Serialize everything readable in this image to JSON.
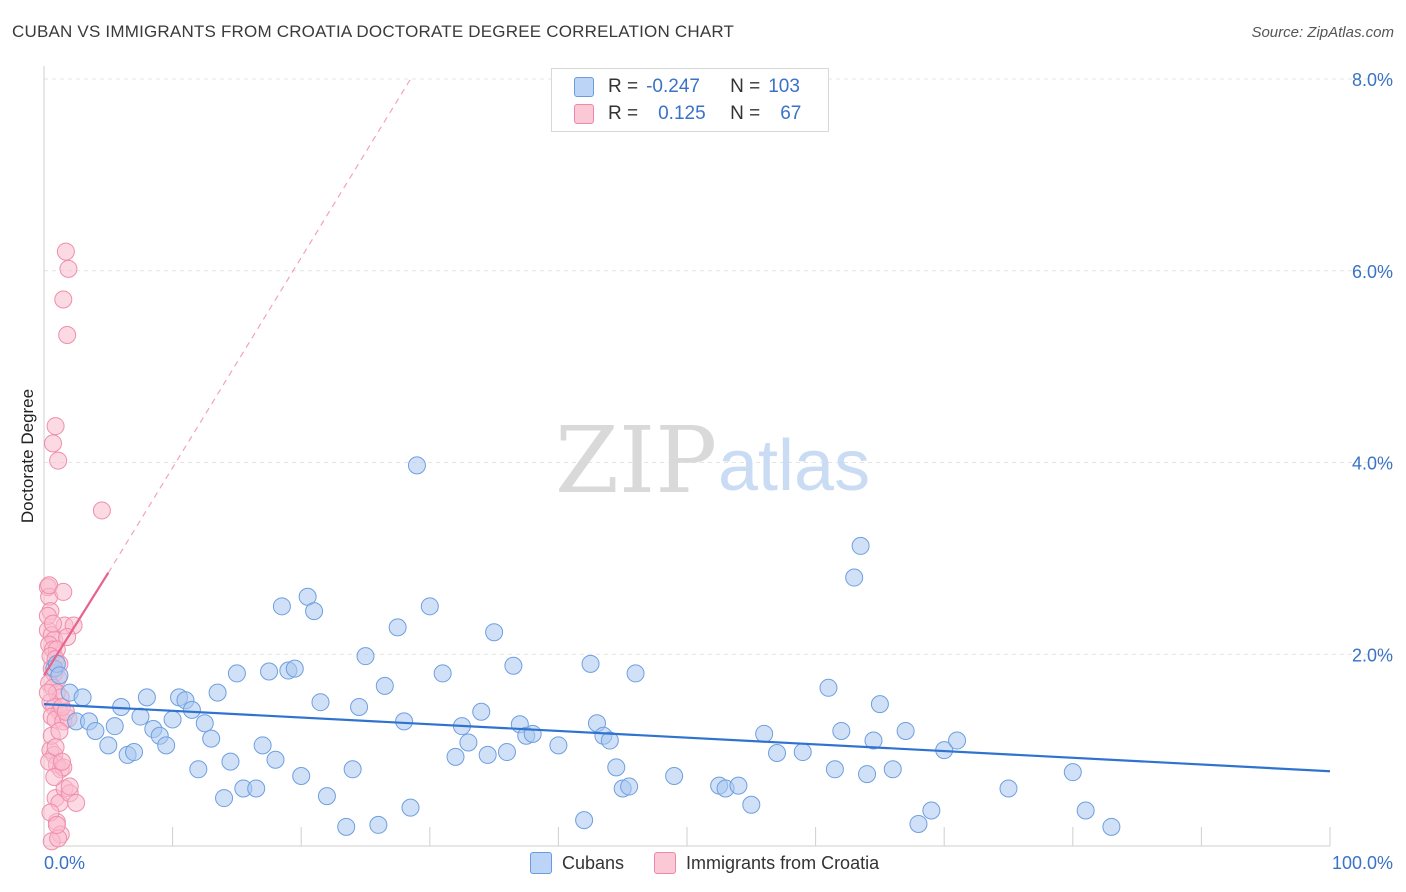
{
  "title": "CUBAN VS IMMIGRANTS FROM CROATIA DOCTORATE DEGREE CORRELATION CHART",
  "source": "Source: ZipAtlas.com",
  "watermark": {
    "zip": "ZIP",
    "atlas": "atlas"
  },
  "legend": {
    "rows": [
      {
        "r_label": "R =",
        "r_value": "-0.247",
        "n_label": "N =",
        "n_value": "103"
      },
      {
        "r_label": "R =",
        "r_value": "0.125",
        "n_label": "N =",
        "n_value": "67"
      }
    ]
  },
  "bottom_legend": {
    "series_a": "Cubans",
    "series_b": "Immigrants from Croatia"
  },
  "colors": {
    "blue_fill": "#a9c8f0",
    "blue_stroke": "#6e9fe0",
    "blue_line": "#2f73d0",
    "pink_fill": "#f9bccd",
    "pink_stroke": "#ef8eaa",
    "pink_line": "#e8628c",
    "axis_text": "#3a72c6",
    "grid": "#e4e4e4"
  },
  "chart_data": {
    "type": "scatter",
    "title": "CUBAN VS IMMIGRANTS FROM CROATIA DOCTORATE DEGREE CORRELATION CHART",
    "xlabel": "",
    "ylabel": "Doctorate Degree",
    "xlim": [
      0,
      100
    ],
    "ylim": [
      0,
      8.2
    ],
    "x_tick_labels": [
      "0.0%",
      "100.0%"
    ],
    "y_ticks": [
      2.0,
      4.0,
      6.0,
      8.0
    ],
    "y_tick_labels": [
      "2.0%",
      "4.0%",
      "6.0%",
      "8.0%"
    ],
    "grid": true,
    "legend_position": "top-center",
    "series": [
      {
        "name": "Cubans",
        "color": "#a9c8f0",
        "trend": {
          "x": [
            0,
            100
          ],
          "y": [
            1.48,
            0.78
          ]
        },
        "points": [
          [
            0.8,
            1.85
          ],
          [
            1.0,
            1.9
          ],
          [
            1.2,
            1.78
          ],
          [
            2.0,
            1.6
          ],
          [
            2.5,
            1.3
          ],
          [
            3.0,
            1.55
          ],
          [
            3.5,
            1.3
          ],
          [
            4.0,
            1.2
          ],
          [
            5.0,
            1.05
          ],
          [
            5.5,
            1.25
          ],
          [
            6.0,
            1.45
          ],
          [
            6.5,
            0.95
          ],
          [
            7.0,
            0.98
          ],
          [
            7.5,
            1.35
          ],
          [
            8.0,
            1.55
          ],
          [
            8.5,
            1.22
          ],
          [
            9.0,
            1.15
          ],
          [
            9.5,
            1.05
          ],
          [
            10.0,
            1.32
          ],
          [
            10.5,
            1.55
          ],
          [
            11.0,
            1.52
          ],
          [
            11.5,
            1.42
          ],
          [
            12.0,
            0.8
          ],
          [
            12.5,
            1.28
          ],
          [
            13.0,
            1.12
          ],
          [
            13.5,
            1.6
          ],
          [
            14.0,
            0.5
          ],
          [
            14.5,
            0.88
          ],
          [
            15.0,
            1.8
          ],
          [
            15.5,
            0.6
          ],
          [
            16.5,
            0.6
          ],
          [
            17.0,
            1.05
          ],
          [
            17.5,
            1.82
          ],
          [
            18.0,
            0.9
          ],
          [
            18.5,
            2.5
          ],
          [
            19.0,
            1.83
          ],
          [
            19.5,
            1.85
          ],
          [
            20.0,
            0.73
          ],
          [
            20.5,
            2.6
          ],
          [
            21.0,
            2.45
          ],
          [
            21.5,
            1.5
          ],
          [
            22.0,
            0.52
          ],
          [
            23.5,
            0.2
          ],
          [
            24.0,
            0.8
          ],
          [
            24.5,
            1.45
          ],
          [
            25.0,
            1.98
          ],
          [
            26.0,
            0.22
          ],
          [
            26.5,
            1.67
          ],
          [
            27.5,
            2.28
          ],
          [
            28.0,
            1.3
          ],
          [
            28.5,
            0.4
          ],
          [
            29.0,
            3.97
          ],
          [
            30.0,
            2.5
          ],
          [
            31.0,
            1.8
          ],
          [
            32.0,
            0.93
          ],
          [
            32.5,
            1.25
          ],
          [
            33.0,
            1.08
          ],
          [
            34.0,
            1.4
          ],
          [
            34.5,
            0.95
          ],
          [
            35.0,
            2.23
          ],
          [
            36.0,
            0.98
          ],
          [
            36.5,
            1.88
          ],
          [
            37.0,
            1.27
          ],
          [
            37.5,
            1.15
          ],
          [
            38.0,
            1.17
          ],
          [
            40.0,
            1.05
          ],
          [
            42.0,
            0.27
          ],
          [
            42.5,
            1.9
          ],
          [
            43.0,
            1.28
          ],
          [
            43.5,
            1.15
          ],
          [
            44.0,
            1.1
          ],
          [
            44.5,
            0.82
          ],
          [
            45.0,
            0.6
          ],
          [
            45.5,
            0.62
          ],
          [
            46.0,
            1.8
          ],
          [
            49.0,
            0.73
          ],
          [
            52.5,
            0.63
          ],
          [
            53.0,
            0.6
          ],
          [
            54.0,
            0.63
          ],
          [
            55.0,
            0.43
          ],
          [
            56.0,
            1.17
          ],
          [
            57.0,
            0.97
          ],
          [
            59.0,
            0.98
          ],
          [
            61.0,
            1.65
          ],
          [
            61.5,
            0.8
          ],
          [
            62.0,
            1.2
          ],
          [
            63.0,
            2.8
          ],
          [
            63.5,
            3.13
          ],
          [
            64.0,
            0.75
          ],
          [
            64.5,
            1.1
          ],
          [
            65.0,
            1.48
          ],
          [
            66.0,
            0.8
          ],
          [
            67.0,
            1.2
          ],
          [
            68.0,
            0.23
          ],
          [
            69.0,
            0.37
          ],
          [
            70.0,
            1.0
          ],
          [
            71.0,
            1.1
          ],
          [
            75.0,
            0.6
          ],
          [
            80.0,
            0.77
          ],
          [
            81.0,
            0.37
          ],
          [
            83.0,
            0.2
          ]
        ]
      },
      {
        "name": "Immigrants from Croatia",
        "color": "#f9bccd",
        "trend": {
          "x": [
            0,
            5
          ],
          "y": [
            1.78,
            2.85
          ]
        },
        "trend_dashed": {
          "x": [
            5,
            28.5
          ],
          "y": [
            2.85,
            8.0
          ]
        },
        "points": [
          [
            0.3,
            2.7
          ],
          [
            0.4,
            2.6
          ],
          [
            0.5,
            2.45
          ],
          [
            0.3,
            2.25
          ],
          [
            0.6,
            2.2
          ],
          [
            0.8,
            2.15
          ],
          [
            0.4,
            2.1
          ],
          [
            0.7,
            2.05
          ],
          [
            1.0,
            2.05
          ],
          [
            0.5,
            1.98
          ],
          [
            0.9,
            1.95
          ],
          [
            1.2,
            1.9
          ],
          [
            0.6,
            1.85
          ],
          [
            0.8,
            1.8
          ],
          [
            1.1,
            1.75
          ],
          [
            0.4,
            1.7
          ],
          [
            0.7,
            1.65
          ],
          [
            1.0,
            1.6
          ],
          [
            1.3,
            1.55
          ],
          [
            0.5,
            1.5
          ],
          [
            0.8,
            1.45
          ],
          [
            1.2,
            1.4
          ],
          [
            0.6,
            1.35
          ],
          [
            0.9,
            1.32
          ],
          [
            1.5,
            1.3
          ],
          [
            0.5,
            1.0
          ],
          [
            0.8,
            0.95
          ],
          [
            1.0,
            0.85
          ],
          [
            1.3,
            0.8
          ],
          [
            0.9,
            0.5
          ],
          [
            1.2,
            0.45
          ],
          [
            1.6,
            0.6
          ],
          [
            2.0,
            0.55
          ],
          [
            2.5,
            0.45
          ],
          [
            1.0,
            0.25
          ],
          [
            1.3,
            0.12
          ],
          [
            0.6,
            0.05
          ],
          [
            1.1,
            0.08
          ],
          [
            1.7,
            6.2
          ],
          [
            1.9,
            6.02
          ],
          [
            1.5,
            5.7
          ],
          [
            1.8,
            5.33
          ],
          [
            0.9,
            4.38
          ],
          [
            0.7,
            4.2
          ],
          [
            1.1,
            4.02
          ],
          [
            4.5,
            3.5
          ],
          [
            0.4,
            2.72
          ],
          [
            1.5,
            2.65
          ],
          [
            0.3,
            2.4
          ],
          [
            1.6,
            2.3
          ],
          [
            2.3,
            2.3
          ],
          [
            1.8,
            2.18
          ],
          [
            0.7,
            2.32
          ],
          [
            1.9,
            1.33
          ],
          [
            1.4,
            1.45
          ],
          [
            0.6,
            1.15
          ],
          [
            0.4,
            0.88
          ],
          [
            1.5,
            0.82
          ],
          [
            0.8,
            0.72
          ],
          [
            0.3,
            1.6
          ],
          [
            1.2,
            1.2
          ],
          [
            0.9,
            1.03
          ],
          [
            1.7,
            1.4
          ],
          [
            0.5,
            0.35
          ],
          [
            2.0,
            0.62
          ],
          [
            1.0,
            0.22
          ],
          [
            1.4,
            0.88
          ]
        ]
      }
    ]
  }
}
